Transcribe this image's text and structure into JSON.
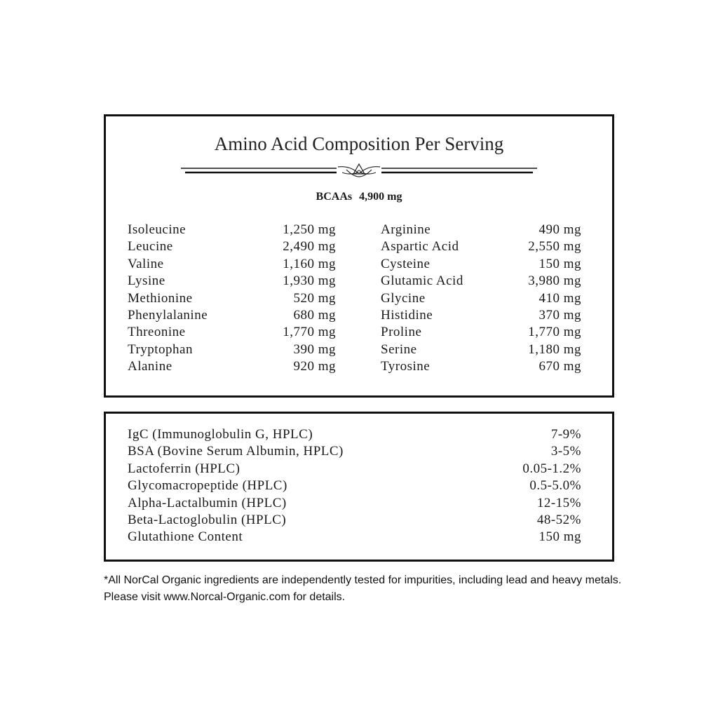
{
  "title": "Amino Acid Composition Per Serving",
  "bcaa": {
    "label": "BCAAs",
    "value": "4,900 mg"
  },
  "amino_left": [
    {
      "name": "Isoleucine",
      "value": "1,250 mg"
    },
    {
      "name": "Leucine",
      "value": "2,490 mg"
    },
    {
      "name": "Valine",
      "value": "1,160 mg"
    },
    {
      "name": "Lysine",
      "value": "1,930 mg"
    },
    {
      "name": "Methionine",
      "value": "520 mg"
    },
    {
      "name": "Phenylalanine",
      "value": "680 mg"
    },
    {
      "name": "Threonine",
      "value": "1,770 mg"
    },
    {
      "name": "Tryptophan",
      "value": "390 mg"
    },
    {
      "name": "Alanine",
      "value": "920 mg"
    }
  ],
  "amino_right": [
    {
      "name": "Arginine",
      "value": "490 mg"
    },
    {
      "name": "Aspartic Acid",
      "value": "2,550 mg"
    },
    {
      "name": "Cysteine",
      "value": "150 mg"
    },
    {
      "name": "Glutamic Acid",
      "value": "3,980 mg"
    },
    {
      "name": "Glycine",
      "value": "410 mg"
    },
    {
      "name": "Histidine",
      "value": "370 mg"
    },
    {
      "name": "Proline",
      "value": "1,770 mg"
    },
    {
      "name": "Serine",
      "value": "1,180 mg"
    },
    {
      "name": "Tyrosine",
      "value": "670 mg"
    }
  ],
  "fractions": [
    {
      "name": "IgC (Immunoglobulin G, HPLC)",
      "value": "7-9%"
    },
    {
      "name": "BSA (Bovine Serum Albumin, HPLC)",
      "value": "3-5%"
    },
    {
      "name": "Lactoferrin (HPLC)",
      "value": "0.05-1.2%"
    },
    {
      "name": "Glycomacropeptide (HPLC)",
      "value": "0.5-5.0%"
    },
    {
      "name": "Alpha-Lactalbumin (HPLC)",
      "value": "12-15%"
    },
    {
      "name": "Beta-Lactoglobulin (HPLC)",
      "value": "48-52%"
    },
    {
      "name": "Glutathione Content",
      "value": "150 mg"
    }
  ],
  "footnote": "*All NorCal Organic ingredients are independently tested for impurities, including lead and heavy metals. Please visit www.Norcal-Organic.com for details."
}
